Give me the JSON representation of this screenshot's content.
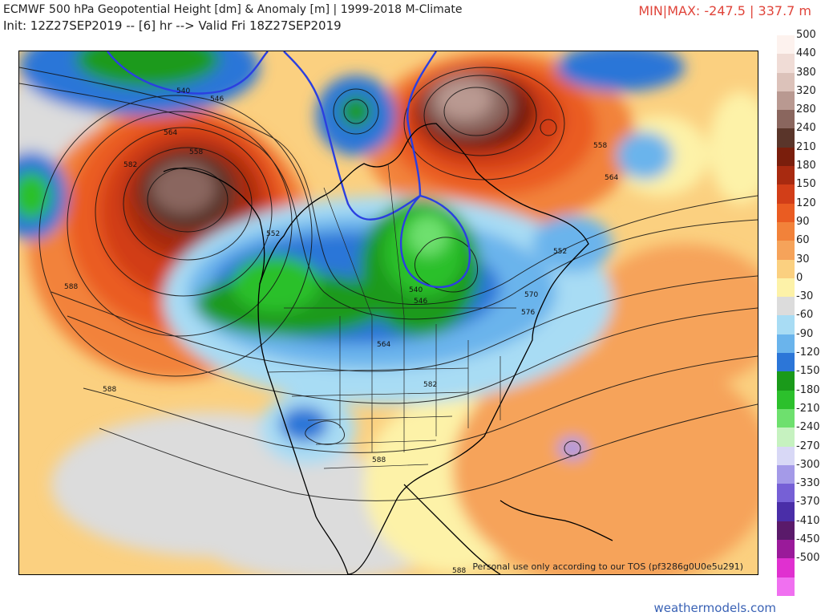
{
  "header": {
    "title": "ECMWF 500 hPa Geopotential Height [dm] & Anomaly [m] | 1999-2018 M-Climate",
    "init_line": "Init: 12Z27SEP2019 -- [6] hr --> Valid Fri 18Z27SEP2019",
    "minmax": "MIN|MAX: -247.5 | 337.7 m"
  },
  "map": {
    "tos_notice": "Personal use only according to our TOS (pf3286g0U0e5u291)",
    "contour_labels": [
      "540",
      "546",
      "564",
      "558",
      "582",
      "552",
      "588",
      "564",
      "558",
      "552",
      "546",
      "582",
      "588",
      "588",
      "588",
      "540",
      "570",
      "576",
      "564"
    ]
  },
  "legend": {
    "items": [
      {
        "label": "500",
        "color": "#fdf2ee"
      },
      {
        "label": "440",
        "color": "#f0dcd6"
      },
      {
        "label": "380",
        "color": "#dcc2ba"
      },
      {
        "label": "320",
        "color": "#b99991"
      },
      {
        "label": "280",
        "color": "#8a665e"
      },
      {
        "label": "240",
        "color": "#5a352a"
      },
      {
        "label": "210",
        "color": "#7a1e0c"
      },
      {
        "label": "180",
        "color": "#a82a10"
      },
      {
        "label": "150",
        "color": "#d23e18"
      },
      {
        "label": "120",
        "color": "#ea5c22"
      },
      {
        "label": "90",
        "color": "#f2823a"
      },
      {
        "label": "60",
        "color": "#f6a35a"
      },
      {
        "label": "30",
        "color": "#fbd080"
      },
      {
        "label": "0",
        "color": "#fdf2a8"
      },
      {
        "label": "-30",
        "color": "#dcdcdc"
      },
      {
        "label": "-60",
        "color": "#a8dcf4"
      },
      {
        "label": "-90",
        "color": "#6ab4ec"
      },
      {
        "label": "-120",
        "color": "#2c76d8"
      },
      {
        "label": "-150",
        "color": "#1a9a1a"
      },
      {
        "label": "-180",
        "color": "#2cc02c"
      },
      {
        "label": "-210",
        "color": "#6ee06e"
      },
      {
        "label": "-240",
        "color": "#c6f2c0"
      },
      {
        "label": "-270",
        "color": "#d8d8f6"
      },
      {
        "label": "-300",
        "color": "#a49ae8"
      },
      {
        "label": "-330",
        "color": "#7660d6"
      },
      {
        "label": "-370",
        "color": "#4a2ea8"
      },
      {
        "label": "-410",
        "color": "#5a1a6a"
      },
      {
        "label": "-450",
        "color": "#9a1a9a"
      },
      {
        "label": "-500",
        "color": "#e030d0"
      },
      {
        "label": "",
        "color": "#f070f0"
      }
    ]
  },
  "footer": {
    "brand": "weathermodels.com"
  }
}
